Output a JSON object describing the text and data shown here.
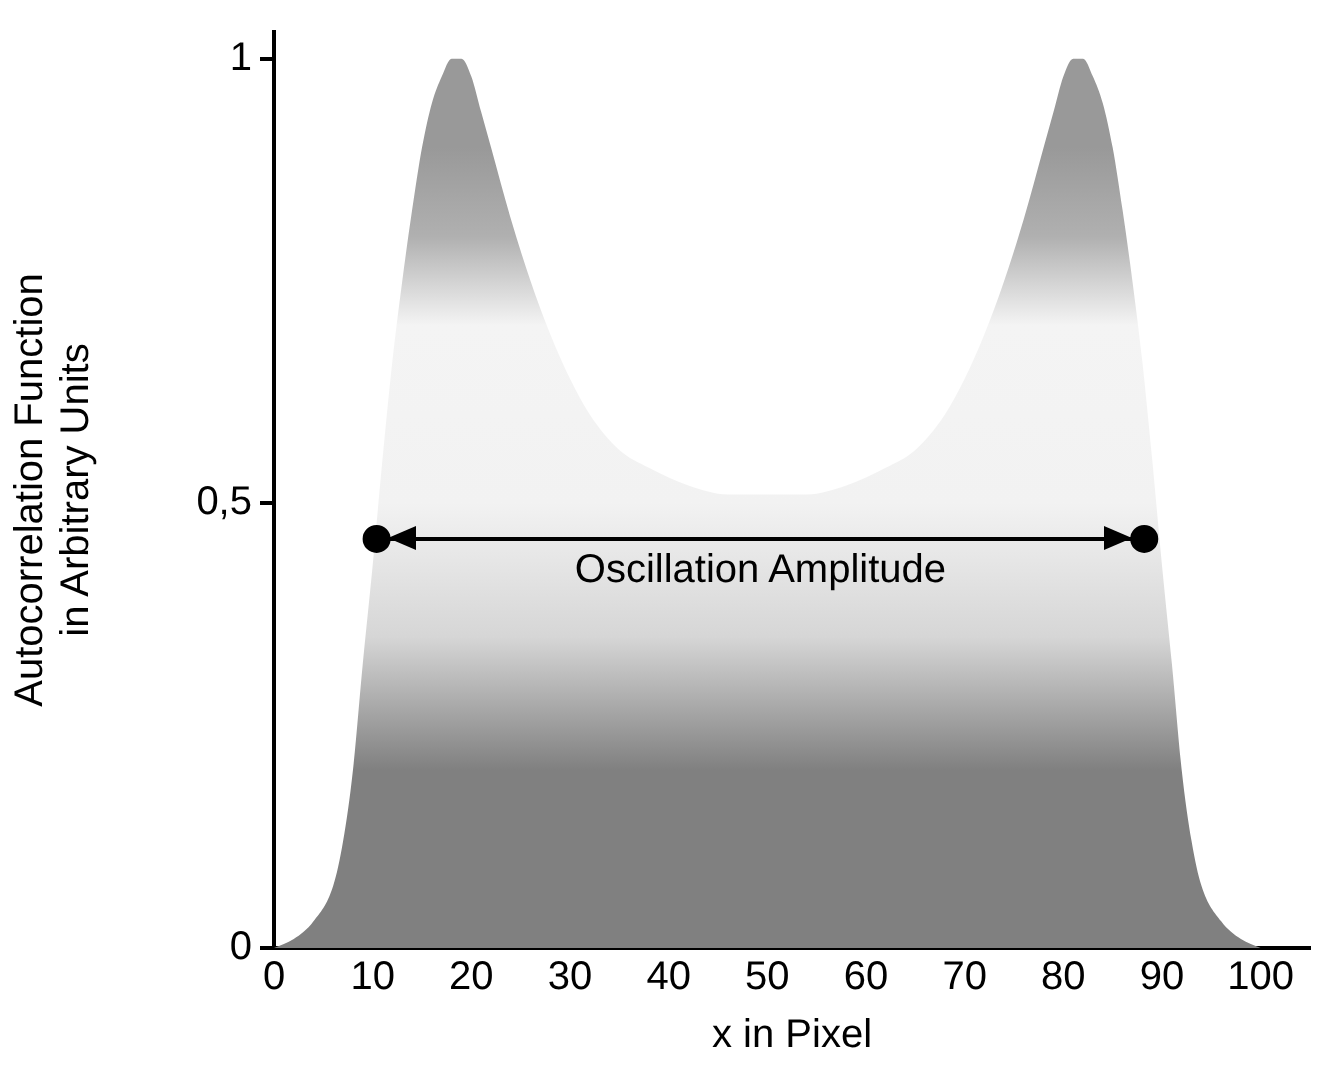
{
  "chart_data": {
    "type": "area",
    "xlabel": "x in Pixel",
    "ylabel": "Autocorrelation Function\nin Arbitrary Units",
    "x": [
      0,
      2,
      4,
      6,
      7,
      8,
      9,
      10,
      11,
      12,
      13,
      14,
      15,
      16,
      17,
      18,
      19,
      20,
      21,
      22,
      24,
      26,
      28,
      30,
      32,
      35,
      38,
      42,
      46,
      50,
      54,
      58,
      62,
      65,
      68,
      70,
      72,
      74,
      76,
      78,
      79,
      80,
      81,
      82,
      83,
      84,
      85,
      86,
      87,
      88,
      89,
      90,
      91,
      92,
      93,
      94,
      96,
      98,
      100
    ],
    "series": [
      {
        "color": "#808080",
        "values": [
          0,
          0.01,
          0.03,
          0.07,
          0.12,
          0.2,
          0.32,
          0.43,
          0.55,
          0.66,
          0.75,
          0.83,
          0.9,
          0.95,
          0.98,
          1,
          1,
          0.98,
          0.94,
          0.9,
          0.82,
          0.75,
          0.69,
          0.64,
          0.6,
          0.56,
          0.54,
          0.52,
          0.51,
          0.51,
          0.51,
          0.52,
          0.54,
          0.56,
          0.6,
          0.64,
          0.69,
          0.75,
          0.82,
          0.9,
          0.94,
          0.98,
          1,
          1,
          0.98,
          0.95,
          0.9,
          0.83,
          0.75,
          0.66,
          0.55,
          0.43,
          0.32,
          0.2,
          0.12,
          0.07,
          0.03,
          0.01,
          0
        ]
      },
      {
        "type": "line",
        "x": [
          10.4,
          88.2
        ],
        "values": [
          0.46,
          0.46
        ],
        "color": "#000000",
        "marker": "circle"
      }
    ],
    "annotations": [
      {
        "text": "Oscillation Amplitude",
        "x": 49.3,
        "y": 0.46
      }
    ],
    "xlim": [
      0,
      105
    ],
    "xticks": [
      0,
      10,
      20,
      30,
      40,
      50,
      60,
      70,
      80,
      90,
      100
    ],
    "ylim": [
      0,
      1.03
    ],
    "yticks": [
      0,
      {
        "value": 0.5,
        "label": "0,5"
      },
      1
    ],
    "grid": false,
    "legend": false
  }
}
